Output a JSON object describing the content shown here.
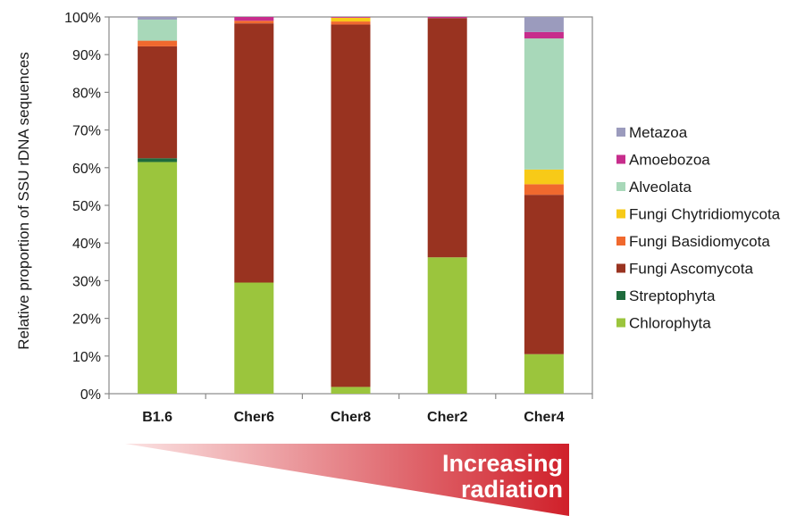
{
  "chart_data": {
    "type": "bar",
    "stacked": true,
    "normalized": true,
    "categories": [
      "B1.6",
      "Cher6",
      "Cher8",
      "Cher2",
      "Cher4"
    ],
    "ylabel": "Relative proportion of SSU rDNA sequences",
    "xlabel": "",
    "ylim": [
      0,
      100
    ],
    "yticks": [
      "0%",
      "10%",
      "20%",
      "30%",
      "40%",
      "50%",
      "60%",
      "70%",
      "80%",
      "90%",
      "100%"
    ],
    "legend_position": "right",
    "series": [
      {
        "name": "Chlorophyta",
        "color": "#9bc53d",
        "values": [
          61.5,
          29.5,
          1.8,
          36.2,
          10.5
        ]
      },
      {
        "name": "Streptophyta",
        "color": "#1e6b3c",
        "values": [
          1.0,
          0,
          0,
          0,
          0
        ]
      },
      {
        "name": "Fungi Ascomycota",
        "color": "#993320",
        "values": [
          29.7,
          68.8,
          96.2,
          63.5,
          42.3
        ]
      },
      {
        "name": "Fungi Basidiomycota",
        "color": "#f0692e",
        "values": [
          1.5,
          0.7,
          0.8,
          0,
          2.8
        ]
      },
      {
        "name": "Fungi Chytridiomycota",
        "color": "#f7ca18",
        "values": [
          0,
          0,
          1.0,
          0,
          3.9
        ]
      },
      {
        "name": "Alveolata",
        "color": "#a8d8b9",
        "values": [
          5.6,
          0,
          0,
          0,
          34.8
        ]
      },
      {
        "name": "Amoebozoa",
        "color": "#c72d8c",
        "values": [
          0,
          1.0,
          0.2,
          0.3,
          1.7
        ]
      },
      {
        "name": "Metazoa",
        "color": "#9b9bbd",
        "values": [
          0.7,
          0,
          0,
          0,
          4.0
        ]
      }
    ],
    "legend_order": [
      "Metazoa",
      "Amoebozoa",
      "Alveolata",
      "Fungi Chytridiomycota",
      "Fungi Basidiomycota",
      "Fungi Ascomycota",
      "Streptophyta",
      "Chlorophyta"
    ]
  },
  "gradient_arrow": {
    "lines": [
      "Increasing",
      "radiation"
    ],
    "color_start": "#fbe3e3",
    "color_end": "#d0202a"
  }
}
